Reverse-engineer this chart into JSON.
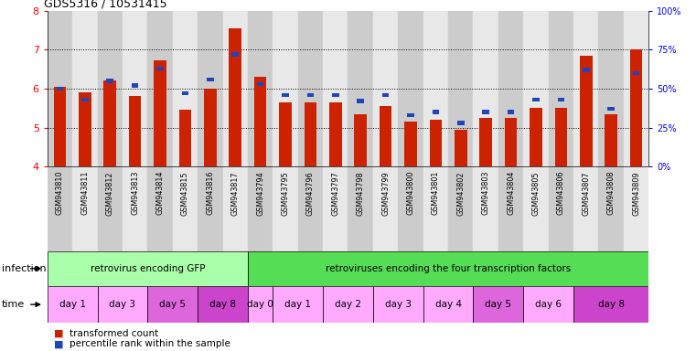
{
  "title": "GDS5316 / 10531415",
  "samples": [
    "GSM943810",
    "GSM943811",
    "GSM943812",
    "GSM943813",
    "GSM943814",
    "GSM943815",
    "GSM943816",
    "GSM943817",
    "GSM943794",
    "GSM943795",
    "GSM943796",
    "GSM943797",
    "GSM943798",
    "GSM943799",
    "GSM943800",
    "GSM943801",
    "GSM943802",
    "GSM943803",
    "GSM943804",
    "GSM943805",
    "GSM943806",
    "GSM943807",
    "GSM943808",
    "GSM943809"
  ],
  "red_values": [
    6.05,
    5.9,
    6.2,
    5.82,
    6.72,
    5.45,
    6.0,
    7.55,
    6.3,
    5.65,
    5.65,
    5.65,
    5.35,
    5.55,
    5.15,
    5.2,
    4.95,
    5.25,
    5.25,
    5.5,
    5.5,
    6.85,
    5.35,
    7.0
  ],
  "blue_values": [
    50,
    43,
    55,
    52,
    63,
    47,
    56,
    72,
    53,
    46,
    46,
    46,
    42,
    46,
    33,
    35,
    28,
    35,
    35,
    43,
    43,
    62,
    37,
    60
  ],
  "ylim_left": [
    4,
    8
  ],
  "ylim_right": [
    0,
    100
  ],
  "yticks_left": [
    4,
    5,
    6,
    7,
    8
  ],
  "yticks_right": [
    0,
    25,
    50,
    75,
    100
  ],
  "ytick_labels_right": [
    "0%",
    "25%",
    "50%",
    "75%",
    "100%"
  ],
  "infection_groups": [
    {
      "label": "retrovirus encoding GFP",
      "start": 0,
      "end": 8,
      "color": "#aaffaa"
    },
    {
      "label": "retroviruses encoding the four transcription factors",
      "start": 8,
      "end": 24,
      "color": "#55dd55"
    }
  ],
  "time_groups": [
    {
      "label": "day 1",
      "start": 0,
      "end": 2,
      "color": "#ffaaff"
    },
    {
      "label": "day 3",
      "start": 2,
      "end": 4,
      "color": "#ffaaff"
    },
    {
      "label": "day 5",
      "start": 4,
      "end": 6,
      "color": "#dd66dd"
    },
    {
      "label": "day 8",
      "start": 6,
      "end": 8,
      "color": "#cc44cc"
    },
    {
      "label": "day 0",
      "start": 8,
      "end": 9,
      "color": "#ffaaff"
    },
    {
      "label": "day 1",
      "start": 9,
      "end": 11,
      "color": "#ffaaff"
    },
    {
      "label": "day 2",
      "start": 11,
      "end": 13,
      "color": "#ffaaff"
    },
    {
      "label": "day 3",
      "start": 13,
      "end": 15,
      "color": "#ffaaff"
    },
    {
      "label": "day 4",
      "start": 15,
      "end": 17,
      "color": "#ffaaff"
    },
    {
      "label": "day 5",
      "start": 17,
      "end": 19,
      "color": "#dd66dd"
    },
    {
      "label": "day 6",
      "start": 19,
      "end": 21,
      "color": "#ffaaff"
    },
    {
      "label": "day 8",
      "start": 21,
      "end": 24,
      "color": "#cc44cc"
    }
  ],
  "bar_color_red": "#cc2200",
  "bar_color_blue": "#2244bb",
  "bar_width": 0.5,
  "bg_even": "#cccccc",
  "bg_odd": "#e8e8e8",
  "infection_label": "infection",
  "time_label": "time",
  "legend_red": "transformed count",
  "legend_blue": "percentile rank within the sample"
}
